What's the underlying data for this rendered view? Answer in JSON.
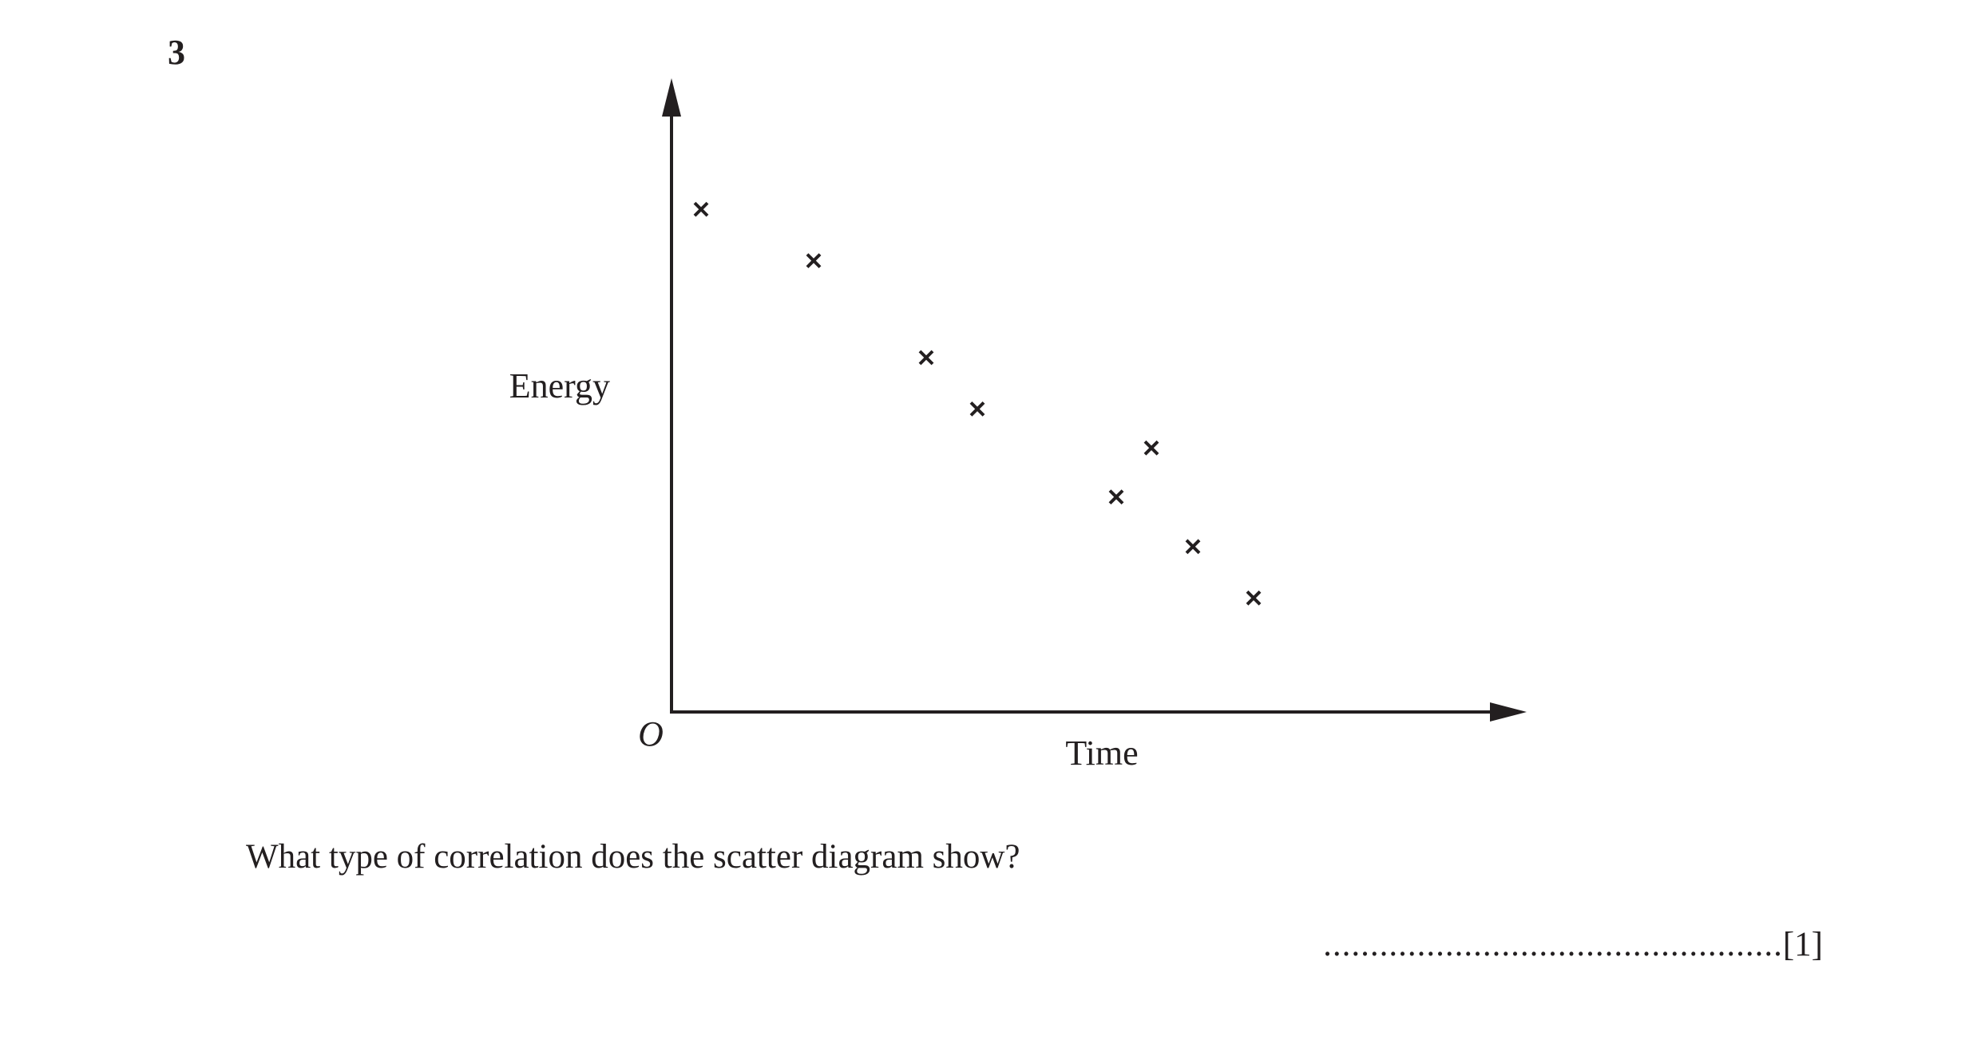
{
  "question": {
    "number": "3",
    "text": "What type of correlation does the scatter diagram show?",
    "answer_dots": ".................................................",
    "marks": "[1]"
  },
  "chart_data": {
    "type": "scatter",
    "title": "",
    "xlabel": "Time",
    "ylabel": "Energy",
    "origin_label": "O",
    "marker": "cross",
    "xlim": [
      0,
      100
    ],
    "ylim": [
      0,
      100
    ],
    "grid": false,
    "ticks": false,
    "series": [
      {
        "x": [
          3.7,
          17.8,
          31.9,
          38.3,
          55.7,
          60.1,
          65.3,
          72.9
        ],
        "y": [
          85.1,
          76.4,
          60.0,
          51.3,
          36.4,
          44.7,
          28.0,
          19.3
        ]
      }
    ]
  }
}
